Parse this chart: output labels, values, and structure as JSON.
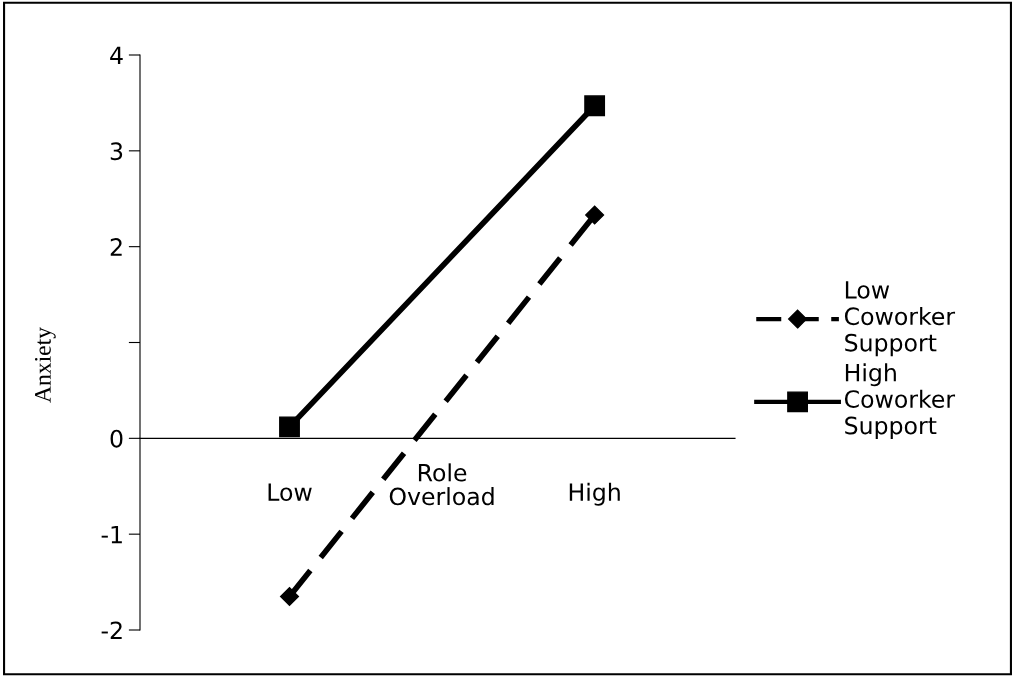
{
  "chart_data": {
    "type": "line",
    "xlabel": "Role Overload",
    "ylabel": "Anxiety",
    "categories": [
      "Low",
      "High"
    ],
    "series": [
      {
        "name": "Low Coworker Support",
        "color": "#000000",
        "values": [
          -1.65,
          2.33
        ],
        "marker": "diamond",
        "line_style": "dashed"
      },
      {
        "name": "High Coworker Support",
        "color": "#000000",
        "values": [
          0.12,
          3.47
        ],
        "marker": "square",
        "line_style": "solid"
      }
    ],
    "ylim": [
      -2,
      4
    ],
    "yticks": [
      -2,
      -1,
      0,
      {
        "value": 1,
        "label": null
      },
      2,
      3,
      4
    ],
    "grid": false,
    "legend": "right"
  }
}
